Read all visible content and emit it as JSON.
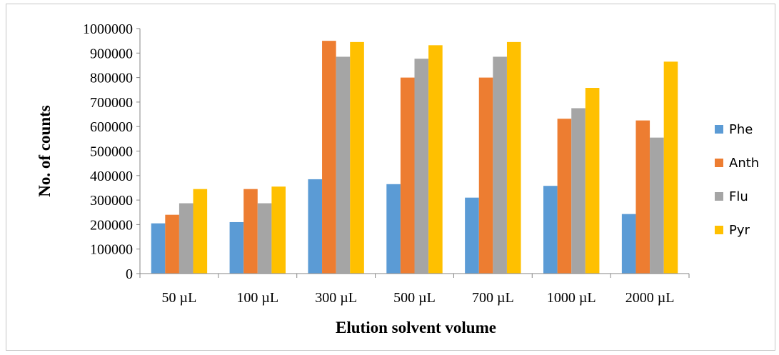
{
  "chart_data": {
    "type": "bar",
    "title": "",
    "xlabel": "Elution solvent volume",
    "ylabel": "No. of counts",
    "categories": [
      "50 µL",
      "100 µL",
      "300 µL",
      "500 µL",
      "700 µL",
      "1000 µL",
      "2000 µL"
    ],
    "series": [
      {
        "name": "Phe",
        "color": "#5b9bd5",
        "values": [
          205000,
          210000,
          385000,
          365000,
          310000,
          358000,
          243000
        ]
      },
      {
        "name": "Anth",
        "color": "#ed7d31",
        "values": [
          240000,
          345000,
          950000,
          800000,
          800000,
          632000,
          625000
        ]
      },
      {
        "name": "Flu",
        "color": "#a5a5a5",
        "values": [
          287000,
          287000,
          885000,
          877000,
          885000,
          675000,
          555000
        ]
      },
      {
        "name": "Pyr",
        "color": "#ffc000",
        "values": [
          345000,
          355000,
          945000,
          932000,
          945000,
          758000,
          865000
        ]
      }
    ],
    "ylim": [
      0,
      1000000
    ],
    "yticks": [
      0,
      100000,
      200000,
      300000,
      400000,
      500000,
      600000,
      700000,
      800000,
      900000,
      1000000
    ],
    "grid": false,
    "legend_position": "right"
  }
}
